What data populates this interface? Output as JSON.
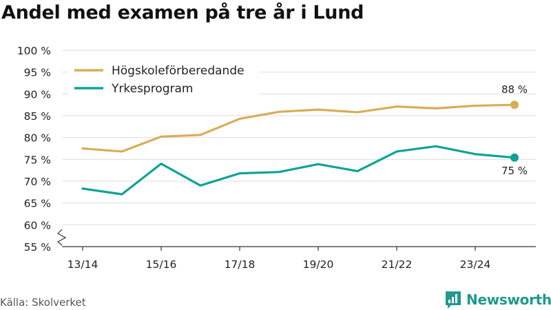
{
  "title": "Andel med examen på tre år i Lund",
  "source": "Källa: Skolverket",
  "brand": "Newsworthy",
  "colors": {
    "series_1": "#d9ad55",
    "series_2": "#0ea394",
    "grid": "#dddddd",
    "axis": "#333333",
    "brand": "#1f9a8b"
  },
  "chart_data": {
    "type": "line",
    "title": "Andel med examen på tre år i Lund",
    "xlabel": "",
    "ylabel": "",
    "x": [
      "13/14",
      "14/15",
      "15/16",
      "16/17",
      "17/18",
      "18/19",
      "19/20",
      "20/21",
      "21/22",
      "22/23",
      "23/24",
      "24/25"
    ],
    "x_tick_labels": [
      "13/14",
      "15/16",
      "17/18",
      "19/20",
      "21/22",
      "23/24"
    ],
    "y_ticks": [
      55,
      60,
      65,
      70,
      75,
      80,
      85,
      90,
      95,
      100
    ],
    "y_tick_labels": [
      "55 %",
      "60 %",
      "65 %",
      "70 %",
      "75 %",
      "80 %",
      "85 %",
      "90 %",
      "95 %",
      "100 %"
    ],
    "ylim": [
      55,
      100
    ],
    "grid": true,
    "legend_position": "top-left",
    "axis_break": true,
    "series": [
      {
        "name": "Högskoleförberedande",
        "color": "#d9ad55",
        "values": [
          77.5,
          76.8,
          80.2,
          80.6,
          84.3,
          85.9,
          86.4,
          85.8,
          87.1,
          86.7,
          87.3,
          87.5
        ],
        "end_label": "88 %"
      },
      {
        "name": "Yrkesprogram",
        "color": "#0ea394",
        "values": [
          68.3,
          67.0,
          74.0,
          69.0,
          71.8,
          72.1,
          73.9,
          72.3,
          76.8,
          78.0,
          76.2,
          75.4
        ],
        "end_label": "75 %"
      }
    ]
  }
}
